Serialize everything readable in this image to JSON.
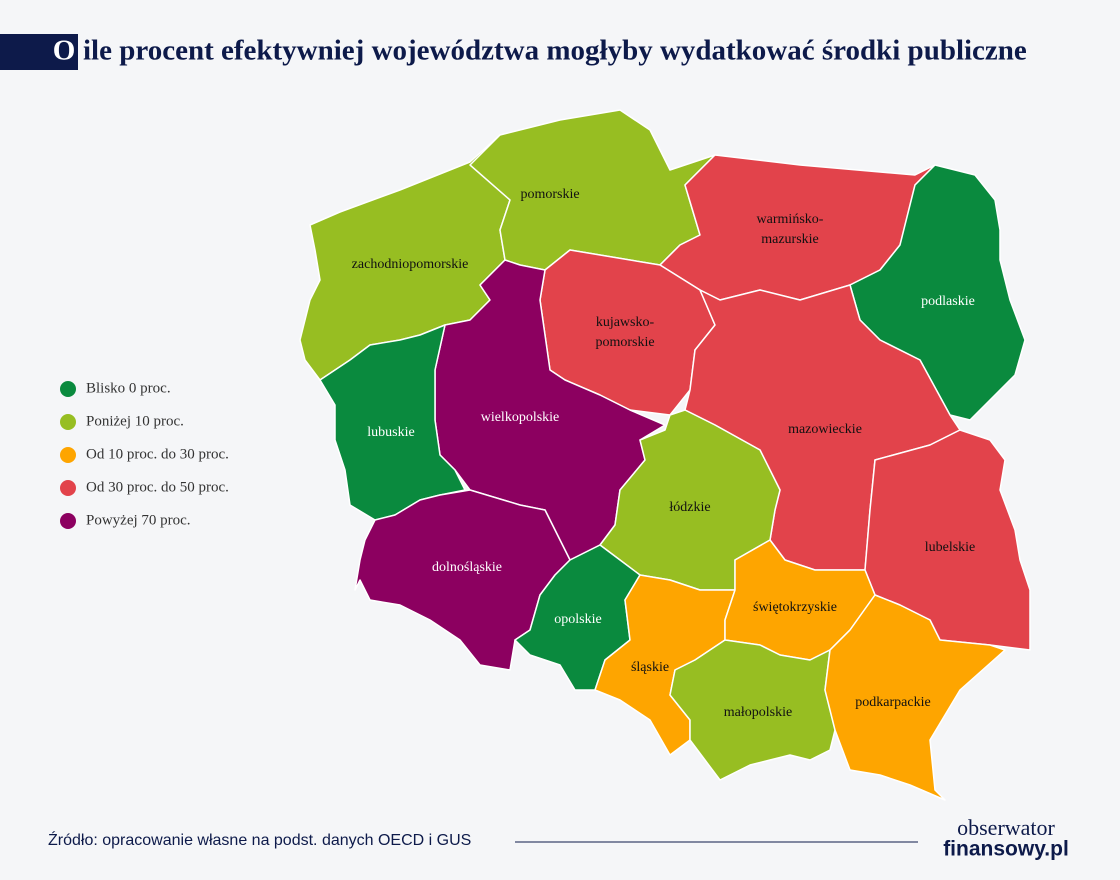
{
  "header": {
    "title_initial": "O",
    "title": "ile procent efektywniej województwa mogłyby wydatkować środki publiczne"
  },
  "legend": [
    {
      "label": "Blisko 0 proc.",
      "color": "#0a8a3e"
    },
    {
      "label": "Poniżej 10 proc.",
      "color": "#97be22"
    },
    {
      "label": "Od 10 proc. do 30 proc.",
      "color": "#fea500"
    },
    {
      "label": "Od 30 proc. do 50 proc.",
      "color": "#e2434b"
    },
    {
      "label": "Powyżej 70 proc.",
      "color": "#8c0060"
    }
  ],
  "regions": [
    {
      "label": "zachodniopomorskie",
      "color": "#97be22"
    },
    {
      "label": "pomorskie",
      "color": "#97be22"
    },
    {
      "label": "warmińsko-",
      "label2": "mazurskie",
      "color": "#e2434b"
    },
    {
      "label": "podlaskie",
      "color": "#0a8a3e"
    },
    {
      "label": "kujawsko-",
      "label2": "pomorskie",
      "color": "#e2434b"
    },
    {
      "label": "mazowieckie",
      "color": "#e2434b"
    },
    {
      "label": "lubelskie",
      "color": "#e2434b"
    },
    {
      "label": "wielkopolskie",
      "color": "#8c0060"
    },
    {
      "label": "lubuskie",
      "color": "#0a8a3e"
    },
    {
      "label": "łódzkie",
      "color": "#97be22"
    },
    {
      "label": "dolnośląskie",
      "color": "#8c0060"
    },
    {
      "label": "opolskie",
      "color": "#0a8a3e"
    },
    {
      "label": "śląskie",
      "color": "#fea500"
    },
    {
      "label": "świętokrzyskie",
      "color": "#fea500"
    },
    {
      "label": "małopolskie",
      "color": "#97be22"
    },
    {
      "label": "podkarpackie",
      "color": "#fea500"
    }
  ],
  "footer": {
    "source": "Źródło: opracowanie własne na podst. danych OECD i GUS",
    "logo_top": "obserwator",
    "logo_bottom": "finansowy.pl"
  }
}
